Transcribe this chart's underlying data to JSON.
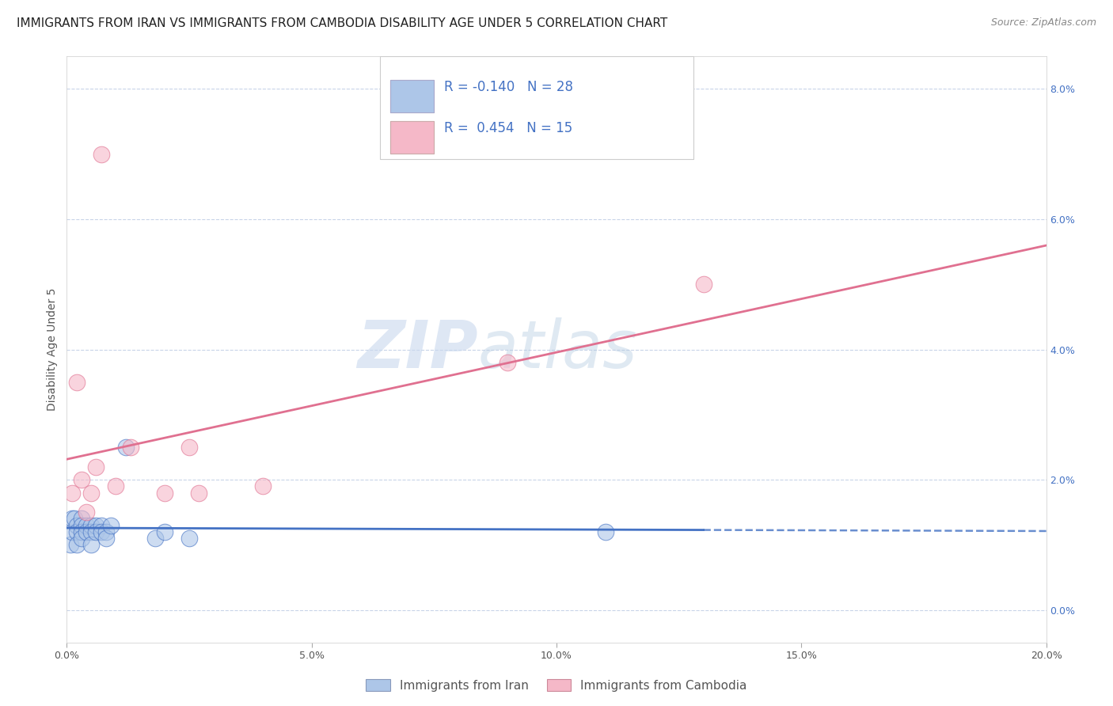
{
  "title": "IMMIGRANTS FROM IRAN VS IMMIGRANTS FROM CAMBODIA DISABILITY AGE UNDER 5 CORRELATION CHART",
  "source": "Source: ZipAtlas.com",
  "ylabel": "Disability Age Under 5",
  "xlabel_iran": "Immigrants from Iran",
  "xlabel_cambodia": "Immigrants from Cambodia",
  "iran_R": -0.14,
  "iran_N": 28,
  "cambodia_R": 0.454,
  "cambodia_N": 15,
  "iran_color": "#adc6e8",
  "cambodia_color": "#f5b8c8",
  "iran_line_color": "#4472c4",
  "cambodia_line_color": "#e07090",
  "xmin": 0.0,
  "xmax": 0.2,
  "ymin": -0.005,
  "ymax": 0.085,
  "iran_x": [
    0.0008,
    0.001,
    0.001,
    0.0015,
    0.002,
    0.002,
    0.002,
    0.003,
    0.003,
    0.003,
    0.003,
    0.004,
    0.004,
    0.005,
    0.005,
    0.005,
    0.006,
    0.006,
    0.007,
    0.007,
    0.008,
    0.008,
    0.009,
    0.012,
    0.018,
    0.02,
    0.025,
    0.11
  ],
  "iran_y": [
    0.01,
    0.012,
    0.014,
    0.014,
    0.013,
    0.012,
    0.01,
    0.014,
    0.013,
    0.012,
    0.011,
    0.013,
    0.012,
    0.013,
    0.012,
    0.01,
    0.013,
    0.012,
    0.013,
    0.012,
    0.012,
    0.011,
    0.013,
    0.025,
    0.011,
    0.012,
    0.011,
    0.012
  ],
  "cambodia_x": [
    0.001,
    0.002,
    0.003,
    0.004,
    0.005,
    0.006,
    0.007,
    0.01,
    0.013,
    0.02,
    0.025,
    0.027,
    0.04,
    0.09,
    0.13
  ],
  "cambodia_y": [
    0.018,
    0.035,
    0.02,
    0.015,
    0.018,
    0.022,
    0.07,
    0.019,
    0.025,
    0.018,
    0.025,
    0.018,
    0.019,
    0.038,
    0.05
  ],
  "watermark_zip": "ZIP",
  "watermark_atlas": "atlas",
  "background_color": "#ffffff",
  "grid_color": "#c8d4e8",
  "title_fontsize": 11,
  "axis_label_fontsize": 10,
  "tick_fontsize": 9,
  "legend_fontsize": 11
}
